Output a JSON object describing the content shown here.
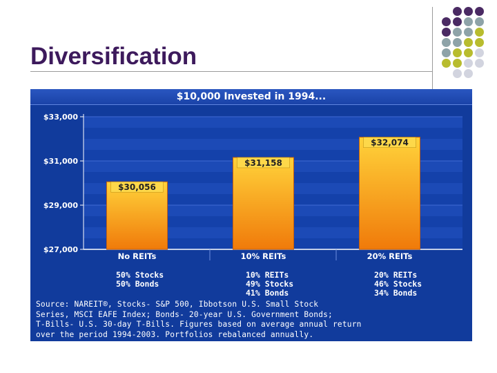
{
  "slide": {
    "title": "Diversification",
    "decor_colors": [
      "#4a2a63",
      "#8ea3a8",
      "#b8bc2e",
      "#d2d4df"
    ]
  },
  "chart_data": {
    "type": "bar",
    "title": "$10,000 Invested in 1994...",
    "categories": [
      "No REITs",
      "10% REITs",
      "20% REITs"
    ],
    "values": [
      30056,
      31158,
      32074
    ],
    "value_labels": [
      "$30,056",
      "$31,158",
      "$32,074"
    ],
    "ylim": [
      27000,
      33000
    ],
    "y_ticks": [
      27000,
      29000,
      31000,
      33000
    ],
    "y_tick_labels": [
      "$27,000",
      "$29,000",
      "$31,000",
      "$33,000"
    ],
    "xlabel": "",
    "ylabel": "",
    "grid": true,
    "colors": {
      "panel": "#113b9c",
      "bar_top": "#ffd23a",
      "bar_bottom": "#f07a0a",
      "label_box": "#fdd84a"
    },
    "allocations": [
      [
        "50% Stocks",
        "50% Bonds"
      ],
      [
        "10% REITs",
        "49% Stocks",
        "41% Bonds"
      ],
      [
        "20% REITs",
        "46% Stocks",
        "34% Bonds"
      ]
    ],
    "source_lines": [
      "Source: NAREIT®, Stocks- S&P 500, Ibbotson U.S. Small Stock",
      "Series, MSCI EAFE Index; Bonds- 20-year U.S. Government Bonds;",
      "T-Bills- U.S. 30-day T-Bills. Figures based on average annual return",
      "over the period 1994-2003. Portfolios rebalanced annually."
    ]
  }
}
